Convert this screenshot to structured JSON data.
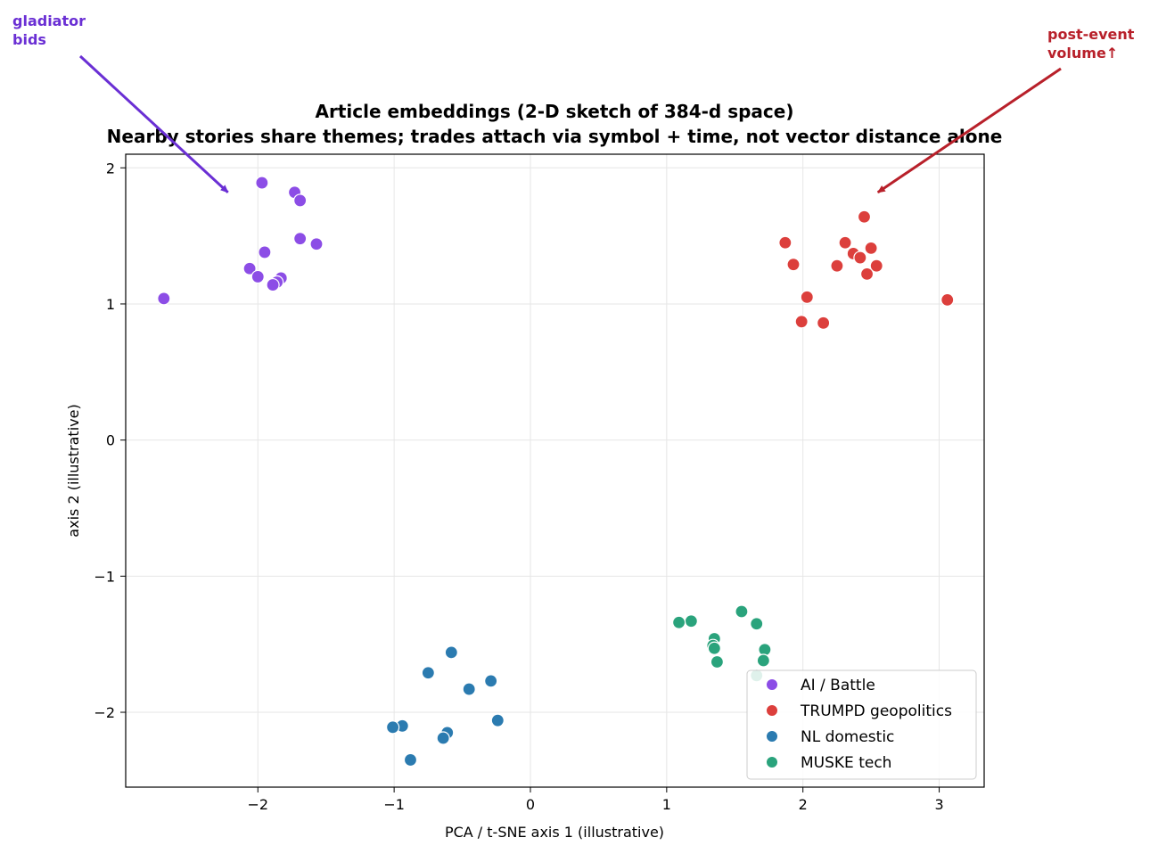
{
  "chart_data": {
    "type": "scatter",
    "title": "Article embeddings (2-D sketch of 384-d space)",
    "subtitle": "Nearby stories share themes; trades attach via symbol + time, not vector distance alone",
    "xlabel": "PCA / t-SNE axis 1 (illustrative)",
    "ylabel": "axis 2 (illustrative)",
    "xlim": [
      -2.97,
      3.33
    ],
    "ylim": [
      -2.55,
      2.1
    ],
    "xticks": [
      -2,
      -1,
      0,
      1,
      2,
      3
    ],
    "yticks": [
      -2,
      -1,
      0,
      1,
      2
    ],
    "xtick_labels": [
      "−2",
      "−1",
      "0",
      "1",
      "2",
      "3"
    ],
    "ytick_labels": [
      "−2",
      "−1",
      "0",
      "1",
      "2"
    ],
    "grid": true,
    "legend_position": "bottom-right",
    "series": [
      {
        "name": "AI / Battle",
        "color": "#8c4de6",
        "points": [
          [
            -1.97,
            1.89
          ],
          [
            -1.73,
            1.82
          ],
          [
            -1.69,
            1.76
          ],
          [
            -1.69,
            1.48
          ],
          [
            -1.57,
            1.44
          ],
          [
            -1.95,
            1.38
          ],
          [
            -2.06,
            1.26
          ],
          [
            -2.0,
            1.2
          ],
          [
            -1.83,
            1.19
          ],
          [
            -1.86,
            1.16
          ],
          [
            -1.89,
            1.14
          ],
          [
            -2.69,
            1.04
          ]
        ]
      },
      {
        "name": "TRUMPD geopolitics",
        "color": "#dc3f3c",
        "points": [
          [
            2.45,
            1.64
          ],
          [
            1.87,
            1.45
          ],
          [
            2.31,
            1.45
          ],
          [
            2.5,
            1.41
          ],
          [
            2.37,
            1.37
          ],
          [
            2.42,
            1.34
          ],
          [
            1.93,
            1.29
          ],
          [
            2.25,
            1.28
          ],
          [
            2.54,
            1.28
          ],
          [
            2.47,
            1.22
          ],
          [
            2.03,
            1.05
          ],
          [
            3.06,
            1.03
          ],
          [
            1.99,
            0.87
          ],
          [
            2.15,
            0.86
          ]
        ]
      },
      {
        "name": "NL domestic",
        "color": "#2b7bb0",
        "points": [
          [
            -0.58,
            -1.56
          ],
          [
            -0.75,
            -1.71
          ],
          [
            -0.29,
            -1.77
          ],
          [
            -0.45,
            -1.83
          ],
          [
            -0.24,
            -2.06
          ],
          [
            -0.94,
            -2.1
          ],
          [
            -1.01,
            -2.11
          ],
          [
            -0.61,
            -2.15
          ],
          [
            -0.64,
            -2.19
          ],
          [
            -0.88,
            -2.35
          ]
        ]
      },
      {
        "name": "MUSKE tech",
        "color": "#2aa37c",
        "points": [
          [
            1.55,
            -1.26
          ],
          [
            1.18,
            -1.33
          ],
          [
            1.09,
            -1.34
          ],
          [
            1.66,
            -1.35
          ],
          [
            1.35,
            -1.46
          ],
          [
            1.34,
            -1.51
          ],
          [
            1.35,
            -1.53
          ],
          [
            1.72,
            -1.54
          ],
          [
            1.71,
            -1.62
          ],
          [
            1.37,
            -1.63
          ],
          [
            1.66,
            -1.73
          ]
        ]
      }
    ],
    "annotations": [
      {
        "text": [
          "gladiator",
          "bids"
        ],
        "color": "#6a2fd4",
        "target": [
          -2.22,
          1.82
        ],
        "text_anchor_side": "top-left"
      },
      {
        "text": [
          "post-event",
          "volume↑"
        ],
        "color": "#b8202a",
        "target": [
          2.55,
          1.82
        ],
        "text_anchor_side": "top-right"
      }
    ]
  }
}
